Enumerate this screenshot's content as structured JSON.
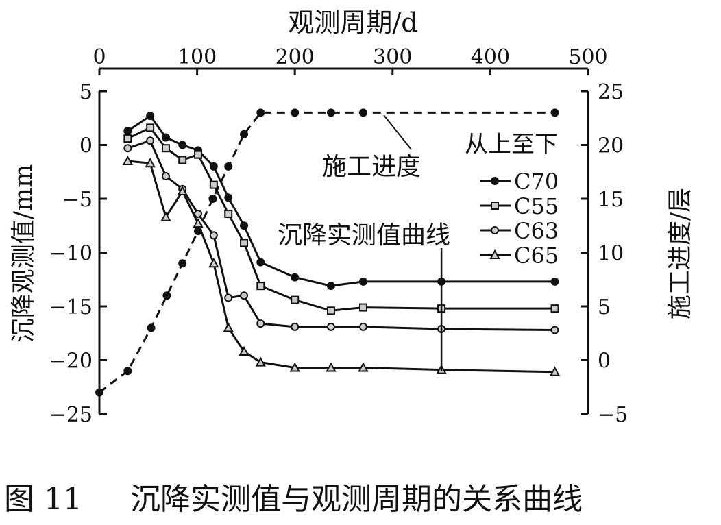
{
  "chart_data": {
    "type": "line",
    "xlabel": "观测周期/d",
    "ylabel": "沉降观测值/mm",
    "y2label": "施工进度/层",
    "xlim": [
      0,
      500
    ],
    "ylim": [
      -25,
      5
    ],
    "y2lim": [
      -5,
      25
    ],
    "xticks": [
      "0",
      "100",
      "200",
      "300",
      "400",
      "500"
    ],
    "yticks": [
      "5",
      "0",
      "−5",
      "−10",
      "−15",
      "−20",
      "−25"
    ],
    "y2ticks": [
      "25",
      "20",
      "15",
      "10",
      "5",
      "0",
      "−5"
    ],
    "x_axis_position": "top",
    "grid": false,
    "legend_title": "从上至下",
    "legend_position": "right",
    "annotations": [
      "施工进度",
      "沉降实测值曲线"
    ],
    "progress_series": {
      "axis": "right",
      "style": "dashed",
      "marker": "filled-circle",
      "x": [
        0,
        29,
        53,
        69,
        85,
        101,
        116,
        132,
        148,
        165,
        200,
        237,
        270,
        466
      ],
      "values": [
        -3,
        -1,
        3,
        6,
        9,
        12,
        15,
        18,
        21,
        23,
        23,
        23,
        23,
        23
      ]
    },
    "x": [
      29,
      52,
      68,
      85,
      101,
      117,
      132,
      148,
      165,
      200,
      237,
      270,
      350,
      466
    ],
    "series": [
      {
        "name": "C70",
        "marker": "filled-circle",
        "values": [
          1.3,
          2.7,
          0.7,
          0,
          -0.5,
          -2,
          -4.9,
          -7.5,
          -10.9,
          -12.3,
          -13.1,
          -12.7,
          -12.7,
          -12.7
        ]
      },
      {
        "name": "C55",
        "marker": "square",
        "values": [
          0.6,
          1.6,
          -0.3,
          -1.4,
          -0.9,
          -3.7,
          -6.4,
          -9.1,
          -13.1,
          -14.4,
          -15.4,
          -15.1,
          -15.2,
          -15.2
        ]
      },
      {
        "name": "C63",
        "marker": "circle",
        "values": [
          -0.3,
          0.4,
          -2.9,
          -4.1,
          -6.4,
          -8.4,
          -14.2,
          -14.0,
          -16.6,
          -16.9,
          -16.9,
          -16.9,
          -17.1,
          -17.2
        ]
      },
      {
        "name": "C65",
        "marker": "triangle",
        "values": [
          -1.5,
          -1.7,
          -6.7,
          -4.3,
          -7.3,
          -11.0,
          -17.0,
          -19.2,
          -20.2,
          -20.7,
          -20.7,
          -20.7,
          -20.9,
          -21.1
        ]
      }
    ]
  },
  "caption": {
    "number": "图 11",
    "text": "沉降实测值与观测周期的关系曲线"
  }
}
